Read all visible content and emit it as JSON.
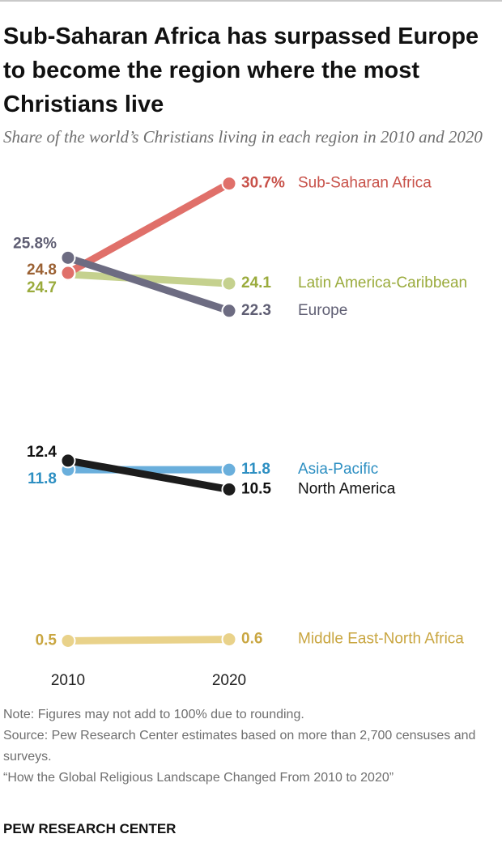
{
  "title": "Sub-Saharan Africa has surpassed Europe to become the region where the most Christians live",
  "subtitle": "Share of the world’s Christians living in each region in 2010 and 2020",
  "note": "Note: Figures may not add to 100% due to rounding.",
  "source": "Source: Pew Research Center estimates based on more than 2,700 censuses and surveys.",
  "citation": "“How the Global Religious Landscape Changed From 2010 to 2020”",
  "brand": "PEW RESEARCH CENTER",
  "chart_data": {
    "type": "line",
    "x": [
      "2010",
      "2020"
    ],
    "ylabel": "",
    "series": [
      {
        "name": "Sub-Saharan Africa",
        "values": [
          24.8,
          30.7
        ],
        "labels": [
          "24.8",
          "30.7%"
        ],
        "color": "#e0706a",
        "label_color": "#c8524a",
        "start_label_color": "#9b6133"
      },
      {
        "name": "Latin America-Caribbean",
        "values": [
          24.7,
          24.1
        ],
        "labels": [
          "24.7",
          "24.1"
        ],
        "color": "#c5d18e",
        "label_color": "#9aab3c"
      },
      {
        "name": "Europe",
        "values": [
          25.8,
          22.3
        ],
        "labels": [
          "25.8%",
          "22.3"
        ],
        "color": "#6d6c82",
        "label_color": "#5f5e73"
      },
      {
        "name": "Asia-Pacific",
        "values": [
          11.8,
          11.8
        ],
        "labels": [
          "11.8",
          "11.8"
        ],
        "color": "#6aafdc",
        "label_color": "#2d8fc2"
      },
      {
        "name": "North America",
        "values": [
          12.4,
          10.5
        ],
        "labels": [
          "12.4",
          "10.5"
        ],
        "color": "#1c1c1c",
        "label_color": "#111111"
      },
      {
        "name": "Middle East-North Africa",
        "values": [
          0.5,
          0.6
        ],
        "labels": [
          "0.5",
          "0.6"
        ],
        "color": "#e9d28a",
        "label_color": "#c9a641"
      }
    ]
  }
}
